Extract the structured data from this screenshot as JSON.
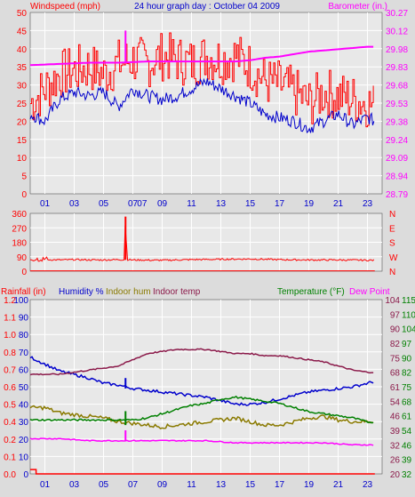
{
  "title": "24 hour graph day : October 04 2009",
  "colors": {
    "bg": "#dcdcdc",
    "plot_bg": "#e8e8e8",
    "grid": "#ffffff",
    "red": "#ff0000",
    "blue": "#0000cc",
    "magenta": "#ff00ff",
    "olive": "#8a7a00",
    "green": "#008000",
    "maroon": "#8b1a4a"
  },
  "x_ticks": [
    "01",
    "03",
    "05",
    "07",
    "09",
    "11",
    "13",
    "15",
    "17",
    "19",
    "21",
    "23"
  ],
  "extra_x_tick": "07",
  "wind": {
    "left_label": "Windspeed (mph)",
    "right_label": "Barometer (in.)",
    "left_ticks": [
      "0",
      "5",
      "10",
      "15",
      "20",
      "25",
      "30",
      "35",
      "40",
      "45",
      "50"
    ],
    "right_ticks": [
      "28.79",
      "28.94",
      "29.09",
      "29.24",
      "29.38",
      "29.53",
      "29.68",
      "29.83",
      "29.98",
      "30.12",
      "30.27"
    ]
  },
  "dir": {
    "left_ticks": [
      "0",
      "90",
      "180",
      "270",
      "360"
    ],
    "right_ticks": [
      "N",
      "W",
      "S",
      "E",
      "N"
    ]
  },
  "bottom": {
    "left_label_rain": "Rainfall (in)",
    "left_label_hum": "Humidity %",
    "left_label_inhum": "Indoor hum",
    "left_label_intemp": "Indoor temp",
    "right_label_temp": "Temperature (°F)",
    "right_label_dew": "Dew Point",
    "rain_ticks": [
      "0.0",
      "0.1",
      "0.2",
      "0.4",
      "0.5",
      "0.6",
      "0.7",
      "0.8",
      "1.0",
      "1.1",
      "1.2"
    ],
    "hum_ticks": [
      "0",
      "10",
      "20",
      "30",
      "40",
      "50",
      "60",
      "70",
      "80",
      "90",
      "100"
    ],
    "temp_ticks_a": [
      "20",
      "26",
      "32",
      "39",
      "46",
      "54",
      "61",
      "68",
      "75",
      "82",
      "90",
      "97",
      "104"
    ],
    "temp_ticks_b": [
      "32",
      "39",
      "46",
      "54",
      "61",
      "68",
      "75",
      "82",
      "90",
      "97",
      "104",
      "110",
      "115"
    ]
  },
  "chart_data": [
    {
      "type": "line",
      "series": [
        {
          "name": "Windspeed (mph)",
          "axis": "left",
          "x": [
            0,
            1,
            2,
            3,
            4,
            5,
            6,
            7,
            8,
            9,
            10,
            11,
            12,
            13,
            14,
            15,
            16,
            17,
            18,
            19,
            20,
            21,
            22,
            23,
            23.5
          ],
          "values": [
            25,
            29,
            33,
            34,
            35,
            33,
            36,
            37,
            36,
            38,
            37,
            36,
            38,
            37,
            38,
            35,
            31,
            30,
            28,
            25,
            28,
            27,
            26,
            25,
            24
          ]
        },
        {
          "name": "Windspeed gust (mph)",
          "axis": "left",
          "x": [
            0,
            1,
            2,
            3,
            4,
            5,
            6,
            7,
            8,
            9,
            10,
            11,
            12,
            13,
            14,
            15,
            16,
            17,
            18,
            19,
            20,
            21,
            22,
            23,
            23.5
          ],
          "values": [
            22,
            20,
            26,
            28,
            27,
            28,
            24,
            29,
            27,
            26,
            27,
            29,
            31,
            29,
            27,
            25,
            22,
            21,
            20,
            18,
            20,
            22,
            19,
            21,
            20
          ]
        },
        {
          "name": "Barometer (in.)",
          "axis": "right",
          "x": [
            0,
            2,
            4,
            6,
            8,
            10,
            12,
            14,
            15,
            16,
            17,
            18,
            19,
            20,
            21,
            22,
            23,
            23.5
          ],
          "values": [
            29.84,
            29.85,
            29.86,
            29.86,
            29.87,
            29.87,
            29.87,
            29.87,
            29.88,
            29.9,
            29.91,
            29.93,
            29.95,
            29.96,
            29.97,
            29.98,
            29.99,
            29.99
          ]
        }
      ],
      "left_range": [
        0,
        50
      ],
      "right_range": [
        28.79,
        30.27
      ],
      "x_range": [
        0,
        24
      ]
    },
    {
      "type": "line",
      "series": [
        {
          "name": "Wind direction (deg)",
          "x": [
            0,
            1,
            2,
            3,
            4,
            5,
            6,
            6.4,
            6.5,
            6.6,
            7,
            9,
            11,
            13,
            15,
            17,
            19,
            21,
            23,
            23.5
          ],
          "values": [
            75,
            72,
            70,
            72,
            70,
            70,
            72,
            72,
            340,
            72,
            70,
            68,
            72,
            74,
            76,
            72,
            70,
            70,
            68,
            68
          ]
        }
      ],
      "ylim": [
        0,
        360
      ],
      "x_range": [
        0,
        24
      ]
    },
    {
      "type": "line",
      "series": [
        {
          "name": "Rainfall (in)",
          "axis": "rain",
          "x": [
            0,
            0.3,
            0.4,
            24
          ],
          "values": [
            0.03,
            0.03,
            0.0,
            0.0
          ]
        },
        {
          "name": "Humidity %",
          "axis": "hum",
          "x": [
            0,
            2,
            4,
            5,
            6,
            7,
            8,
            9,
            10,
            11,
            12,
            13,
            14,
            15,
            16,
            17,
            18,
            19,
            20,
            21,
            22,
            23,
            23.5
          ],
          "values": [
            67,
            59,
            55,
            52,
            51,
            49,
            48,
            47,
            46,
            45,
            44,
            42,
            40,
            40,
            41,
            43,
            45,
            47,
            48,
            49,
            50,
            52,
            53
          ]
        },
        {
          "name": "Indoor hum",
          "axis": "hum",
          "x": [
            0,
            1,
            2,
            3,
            4,
            5,
            6,
            7,
            8,
            9,
            10,
            11,
            12,
            13,
            14,
            15,
            16,
            17,
            18,
            19,
            20,
            21,
            22,
            23,
            23.5
          ],
          "values": [
            38,
            38,
            35,
            34,
            33,
            32,
            30,
            29,
            28,
            27,
            28,
            29,
            30,
            31,
            32,
            30,
            28,
            28,
            30,
            32,
            33,
            31,
            30,
            30,
            30
          ]
        },
        {
          "name": "Indoor temp",
          "axis": "temp_a",
          "x": [
            0,
            2,
            4,
            6,
            7,
            8,
            9,
            10,
            11,
            12,
            13,
            14,
            15,
            16,
            17,
            18,
            19,
            20,
            21,
            22,
            23,
            23.5
          ],
          "values": [
            68,
            68,
            70,
            72,
            75,
            78,
            79,
            80,
            80,
            80,
            79,
            78,
            78,
            77,
            77,
            76,
            75,
            74,
            72,
            70,
            69,
            69
          ]
        },
        {
          "name": "Temperature (°F)",
          "axis": "temp_a",
          "x": [
            0,
            2,
            4,
            6,
            7,
            8,
            9,
            10,
            11,
            12,
            13,
            14,
            15,
            16,
            17,
            18,
            19,
            20,
            21,
            22,
            23,
            23.5
          ],
          "values": [
            46,
            46,
            46,
            46,
            46,
            47,
            49,
            51,
            53,
            54,
            56,
            57,
            56,
            55,
            54,
            52,
            50,
            49,
            48,
            47,
            45,
            45
          ]
        },
        {
          "name": "Dew Point",
          "axis": "temp_a",
          "x": [
            0,
            2,
            4,
            6,
            6.5,
            7,
            8,
            10,
            12,
            14,
            16,
            18,
            20,
            22,
            23,
            23.5
          ],
          "values": [
            37,
            37,
            36,
            36,
            36,
            36,
            36,
            36,
            36,
            35,
            35,
            35,
            35,
            34,
            34,
            34
          ]
        }
      ],
      "x_range": [
        0,
        24
      ]
    }
  ]
}
